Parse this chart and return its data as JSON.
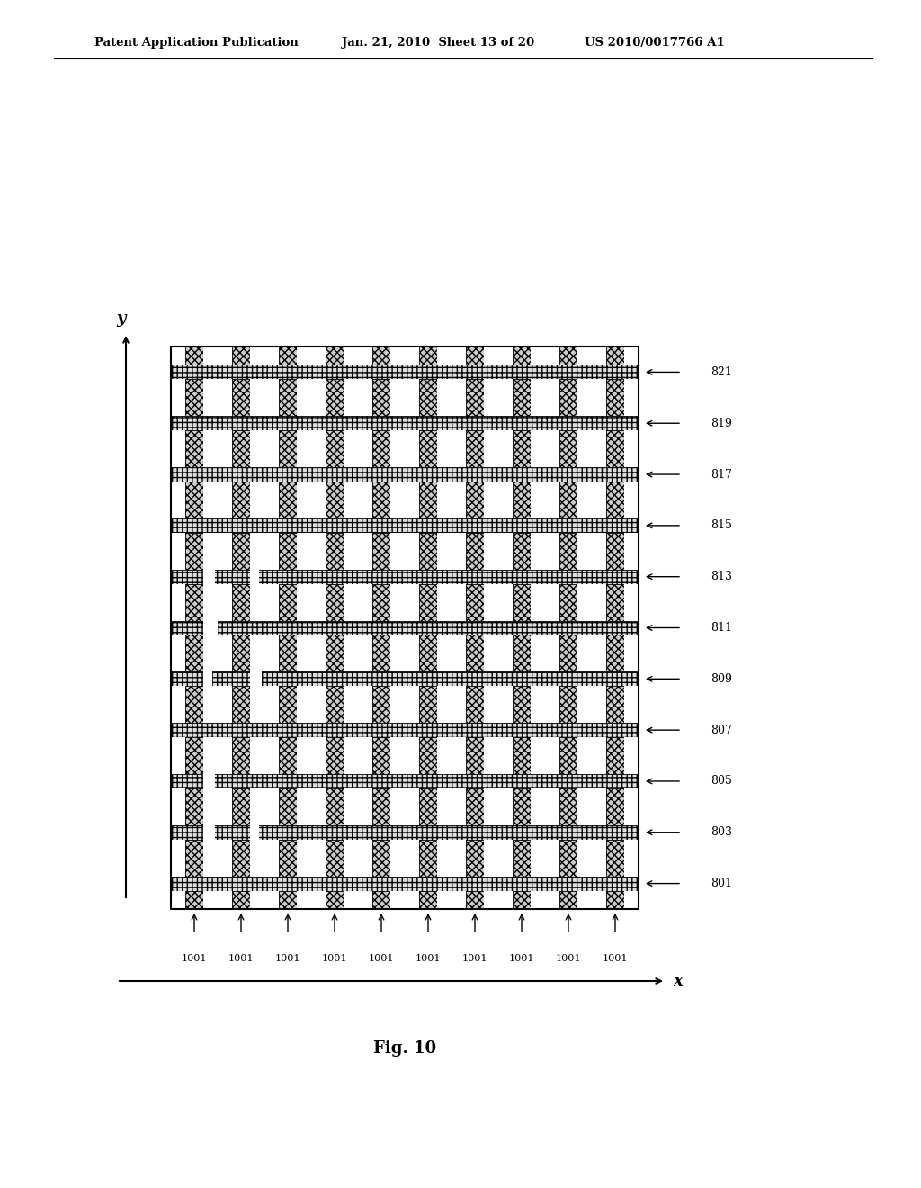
{
  "header_left": "Patent Application Publication",
  "header_mid": "Jan. 21, 2010  Sheet 13 of 20",
  "header_right": "US 2010/0017766 A1",
  "fig_label": "Fig. 10",
  "y_axis_label": "y",
  "x_axis_label": "x",
  "row_labels": [
    "821",
    "819",
    "817",
    "815",
    "813",
    "811",
    "809",
    "807",
    "805",
    "803",
    "801"
  ],
  "col_labels": [
    "1001",
    "1001",
    "1001",
    "1001",
    "1001",
    "1001",
    "1001",
    "1001",
    "1001",
    "1001"
  ],
  "num_cols": 10,
  "num_rows": 11,
  "bg_color": "#ffffff"
}
